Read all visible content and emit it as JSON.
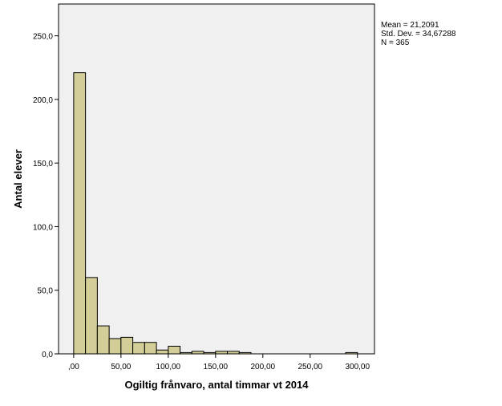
{
  "chart_data": {
    "type": "bar",
    "xlabel": "Ogiltig frånvaro, antal timmar vt 2014",
    "ylabel": "Antal elever",
    "xlim": [
      -16,
      318
    ],
    "ylim": [
      0,
      275
    ],
    "xticks": [
      0,
      50,
      100,
      150,
      200,
      250,
      300
    ],
    "xtick_labels": [
      ",00",
      "50,00",
      "100,00",
      "150,00",
      "200,00",
      "250,00",
      "300,00"
    ],
    "yticks": [
      0,
      50,
      100,
      150,
      200,
      250
    ],
    "ytick_labels": [
      "0,0",
      "50,0",
      "100,0",
      "150,0",
      "200,0",
      "250,0"
    ],
    "bin_width": 12.5,
    "bins": [
      {
        "start": 0,
        "count": 221
      },
      {
        "start": 12.5,
        "count": 60
      },
      {
        "start": 25,
        "count": 22
      },
      {
        "start": 37.5,
        "count": 12
      },
      {
        "start": 50,
        "count": 13
      },
      {
        "start": 62.5,
        "count": 9
      },
      {
        "start": 75,
        "count": 9
      },
      {
        "start": 87.5,
        "count": 3
      },
      {
        "start": 100,
        "count": 6
      },
      {
        "start": 112.5,
        "count": 1
      },
      {
        "start": 125,
        "count": 2
      },
      {
        "start": 137.5,
        "count": 1
      },
      {
        "start": 150,
        "count": 2
      },
      {
        "start": 162.5,
        "count": 2
      },
      {
        "start": 175,
        "count": 1
      },
      {
        "start": 287.5,
        "count": 1
      }
    ],
    "grid": false,
    "stats": {
      "mean": "Mean = 21,2091",
      "std": "Std. Dev. = 34,67288",
      "n": "N = 365"
    }
  },
  "colors": {
    "plot_bg": "#f0f0f0",
    "bar_fill": "#d3ce97",
    "bar_stroke": "#000000",
    "axis": "#000000"
  }
}
